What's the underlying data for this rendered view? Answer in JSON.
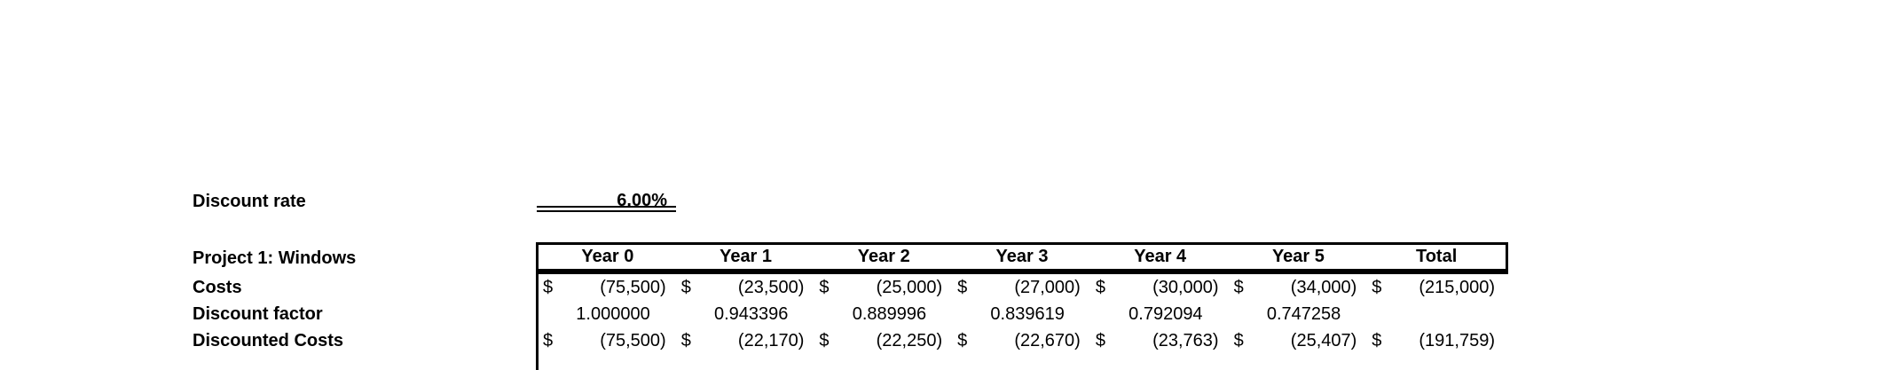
{
  "colors": {
    "text": "#000000",
    "background": "#ffffff",
    "border": "#000000"
  },
  "discount_rate": {
    "label": "Discount rate",
    "value": "6.00%"
  },
  "table": {
    "title": "Project 1: Windows",
    "currency_symbol": "$",
    "columns": [
      "Year 0",
      "Year 1",
      "Year 2",
      "Year 3",
      "Year 4",
      "Year 5",
      "Total"
    ],
    "row_labels": [
      "Costs",
      "Discount factor",
      "Discounted Costs"
    ],
    "rows": {
      "costs": [
        "(75,500)",
        "(23,500)",
        "(25,000)",
        "(27,000)",
        "(30,000)",
        "(34,000)",
        "(215,000)"
      ],
      "discount_factor": [
        "1.000000",
        "0.943396",
        "0.889996",
        "0.839619",
        "0.792094",
        "0.747258",
        ""
      ],
      "discounted_costs": [
        "(75,500)",
        "(22,170)",
        "(22,250)",
        "(22,670)",
        "(23,763)",
        "(25,407)",
        "(191,759)"
      ]
    }
  }
}
